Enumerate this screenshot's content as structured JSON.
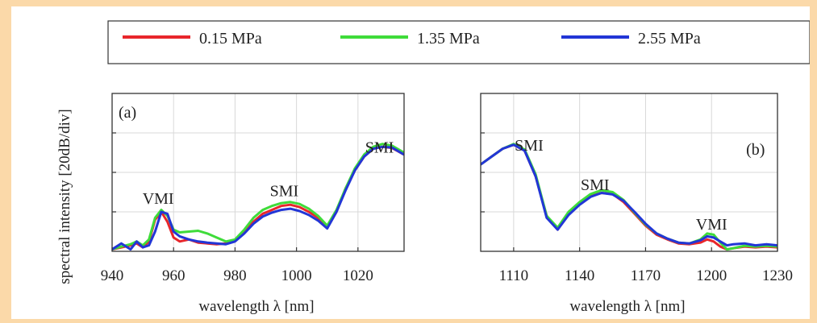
{
  "figure": {
    "ylabel": "spectral intensity [20dB/div]",
    "xlabel": "wavelength λ [nm]"
  },
  "legend": [
    {
      "label": "0.15 MPa",
      "color": "#e8262b"
    },
    {
      "label": "1.35 MPa",
      "color": "#3fdc3a"
    },
    {
      "label": "2.55 MPa",
      "color": "#2236d6"
    }
  ],
  "chart_data": [
    {
      "type": "line",
      "panel_label": "(a)",
      "xlabel": "wavelength λ [nm]",
      "ylabel": "spectral intensity [20dB/div]",
      "xlim": [
        940,
        1035
      ],
      "ylim": [
        0,
        4
      ],
      "xticks": [
        940,
        960,
        980,
        1000,
        1020
      ],
      "grid": true,
      "legend_position": "top",
      "annotations": [
        {
          "text": "VMI",
          "x": 955,
          "y": 1.2
        },
        {
          "text": "SMI",
          "x": 996,
          "y": 1.4
        },
        {
          "text": "SMI",
          "x": 1027,
          "y": 2.5
        }
      ],
      "series": [
        {
          "name": "0.15 MPa",
          "x": [
            940,
            943,
            946,
            948,
            950,
            952,
            954,
            956,
            958,
            960,
            962,
            965,
            968,
            971,
            974,
            977,
            980,
            983,
            986,
            989,
            992,
            995,
            998,
            1001,
            1004,
            1007,
            1010,
            1013,
            1016,
            1019,
            1022,
            1025,
            1028,
            1031,
            1035
          ],
          "y": [
            0.05,
            0.1,
            0.15,
            0.2,
            0.1,
            0.25,
            0.8,
            1.0,
            0.75,
            0.35,
            0.25,
            0.3,
            0.22,
            0.2,
            0.18,
            0.2,
            0.28,
            0.5,
            0.75,
            0.95,
            1.05,
            1.15,
            1.18,
            1.12,
            1.0,
            0.85,
            0.6,
            1.0,
            1.6,
            2.05,
            2.4,
            2.6,
            2.65,
            2.62,
            2.45
          ]
        },
        {
          "name": "1.35 MPa",
          "x": [
            940,
            943,
            946,
            948,
            950,
            952,
            954,
            956,
            958,
            960,
            962,
            965,
            968,
            971,
            974,
            977,
            980,
            983,
            986,
            989,
            992,
            995,
            998,
            1001,
            1004,
            1007,
            1010,
            1013,
            1016,
            1019,
            1022,
            1025,
            1028,
            1031,
            1035
          ],
          "y": [
            0.05,
            0.12,
            0.18,
            0.25,
            0.15,
            0.3,
            0.85,
            1.05,
            0.9,
            0.55,
            0.48,
            0.5,
            0.52,
            0.45,
            0.35,
            0.25,
            0.3,
            0.55,
            0.85,
            1.05,
            1.15,
            1.22,
            1.25,
            1.2,
            1.08,
            0.9,
            0.65,
            1.05,
            1.6,
            2.1,
            2.45,
            2.65,
            2.72,
            2.68,
            2.5
          ]
        },
        {
          "name": "2.55 MPa",
          "x": [
            940,
            943,
            946,
            948,
            950,
            952,
            954,
            956,
            958,
            960,
            962,
            965,
            968,
            971,
            974,
            977,
            980,
            983,
            986,
            989,
            992,
            995,
            998,
            1001,
            1004,
            1007,
            1010,
            1013,
            1016,
            1019,
            1022,
            1025,
            1028,
            1031,
            1035
          ],
          "y": [
            0.05,
            0.2,
            0.05,
            0.25,
            0.1,
            0.15,
            0.5,
            1.0,
            0.95,
            0.5,
            0.38,
            0.3,
            0.25,
            0.22,
            0.2,
            0.18,
            0.25,
            0.45,
            0.7,
            0.88,
            0.98,
            1.05,
            1.08,
            1.02,
            0.92,
            0.78,
            0.58,
            1.0,
            1.55,
            2.05,
            2.4,
            2.6,
            2.65,
            2.63,
            2.45
          ]
        }
      ]
    },
    {
      "type": "line",
      "panel_label": "(b)",
      "xlabel": "wavelength λ [nm]",
      "xlim": [
        1095,
        1230
      ],
      "ylim": [
        0,
        4
      ],
      "xticks": [
        1110,
        1140,
        1170,
        1200,
        1230
      ],
      "grid": true,
      "annotations": [
        {
          "text": "SMI",
          "x": 1117,
          "y": 2.55
        },
        {
          "text": "SMI",
          "x": 1147,
          "y": 1.55
        },
        {
          "text": "VMI",
          "x": 1200,
          "y": 0.55
        },
        {
          "text": "(b)",
          "x": 1220,
          "y": 2.45
        }
      ],
      "series": [
        {
          "name": "0.15 MPa",
          "x": [
            1095,
            1100,
            1105,
            1110,
            1115,
            1120,
            1125,
            1130,
            1135,
            1140,
            1145,
            1150,
            1155,
            1160,
            1165,
            1170,
            1175,
            1180,
            1185,
            1190,
            1195,
            1198,
            1201,
            1204,
            1207,
            1210,
            1215,
            1220,
            1225,
            1230
          ],
          "y": [
            2.2,
            2.4,
            2.6,
            2.7,
            2.55,
            1.9,
            0.9,
            0.55,
            0.95,
            1.2,
            1.4,
            1.48,
            1.45,
            1.25,
            0.95,
            0.65,
            0.42,
            0.3,
            0.2,
            0.18,
            0.22,
            0.3,
            0.25,
            0.12,
            0.05,
            0.08,
            0.12,
            0.1,
            0.12,
            0.1
          ]
        },
        {
          "name": "1.35 MPa",
          "x": [
            1095,
            1100,
            1105,
            1110,
            1115,
            1120,
            1125,
            1130,
            1135,
            1140,
            1145,
            1150,
            1155,
            1160,
            1165,
            1170,
            1175,
            1180,
            1185,
            1190,
            1195,
            1198,
            1201,
            1204,
            1207,
            1210,
            1215,
            1220,
            1225,
            1230
          ],
          "y": [
            2.2,
            2.4,
            2.6,
            2.72,
            2.58,
            1.95,
            0.9,
            0.6,
            1.0,
            1.25,
            1.45,
            1.55,
            1.5,
            1.3,
            0.98,
            0.68,
            0.45,
            0.32,
            0.22,
            0.2,
            0.3,
            0.45,
            0.42,
            0.22,
            0.05,
            0.08,
            0.14,
            0.12,
            0.14,
            0.12
          ]
        },
        {
          "name": "2.55 MPa",
          "x": [
            1095,
            1100,
            1105,
            1110,
            1115,
            1120,
            1125,
            1130,
            1135,
            1140,
            1145,
            1150,
            1155,
            1160,
            1165,
            1170,
            1175,
            1180,
            1185,
            1190,
            1195,
            1198,
            1201,
            1204,
            1207,
            1210,
            1215,
            1220,
            1225,
            1230
          ],
          "y": [
            2.2,
            2.4,
            2.6,
            2.7,
            2.55,
            1.9,
            0.85,
            0.55,
            0.92,
            1.18,
            1.38,
            1.48,
            1.44,
            1.28,
            1.0,
            0.7,
            0.45,
            0.32,
            0.22,
            0.2,
            0.28,
            0.38,
            0.35,
            0.25,
            0.15,
            0.18,
            0.2,
            0.15,
            0.18,
            0.15
          ]
        }
      ]
    }
  ]
}
